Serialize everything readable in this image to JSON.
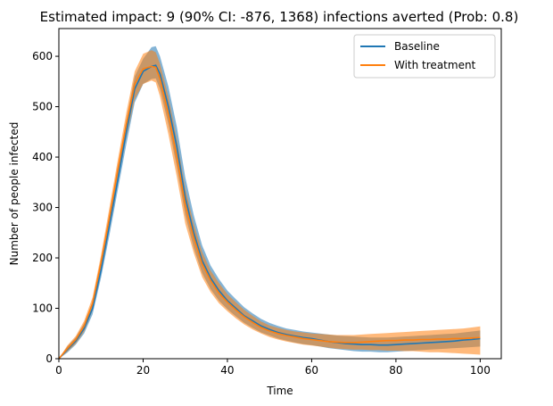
{
  "chart_data": {
    "type": "line",
    "title": "Estimated impact: 9 (90% CI: -876, 1368) infections averted (Prob: 0.8)",
    "xlabel": "Time",
    "ylabel": "Number of people infected",
    "xlim": [
      0,
      105
    ],
    "ylim": [
      0,
      655
    ],
    "xticks": [
      0,
      20,
      40,
      60,
      80,
      100
    ],
    "yticks": [
      0,
      100,
      200,
      300,
      400,
      500,
      600
    ],
    "xtick_labels": [
      "0",
      "20",
      "40",
      "60",
      "80",
      "100"
    ],
    "ytick_labels": [
      "0",
      "100",
      "200",
      "300",
      "400",
      "500",
      "600"
    ],
    "grid": false,
    "legend_position": "top-right",
    "x": [
      0,
      2,
      4,
      6,
      8,
      10,
      12,
      14,
      16,
      18,
      20,
      22,
      23,
      24,
      26,
      28,
      30,
      32,
      34,
      36,
      38,
      40,
      42,
      44,
      46,
      48,
      50,
      52,
      54,
      56,
      58,
      60,
      62,
      64,
      66,
      68,
      70,
      72,
      74,
      76,
      78,
      80,
      82,
      84,
      86,
      88,
      90,
      92,
      94,
      96,
      98,
      100
    ],
    "series": [
      {
        "name": "Baseline",
        "color": "#1f77b4",
        "band_color": "#1f77b4",
        "values": [
          0,
          18,
          35,
          60,
          100,
          175,
          265,
          355,
          450,
          535,
          570,
          580,
          582,
          565,
          500,
          420,
          320,
          250,
          195,
          160,
          135,
          115,
          100,
          85,
          75,
          65,
          58,
          52,
          48,
          45,
          42,
          40,
          37,
          34,
          32,
          30,
          29,
          28,
          28,
          27,
          27,
          28,
          29,
          30,
          31,
          32,
          33,
          34,
          35,
          37,
          38,
          40
        ],
        "lower": [
          0,
          12,
          28,
          50,
          88,
          160,
          245,
          335,
          425,
          508,
          545,
          555,
          556,
          535,
          465,
          380,
          285,
          220,
          170,
          138,
          115,
          98,
          84,
          71,
          61,
          52,
          46,
          40,
          36,
          32,
          29,
          27,
          24,
          21,
          19,
          17,
          15,
          14,
          14,
          13,
          13,
          14,
          15,
          16,
          17,
          18,
          19,
          20,
          21,
          22,
          23,
          24
        ],
        "upper": [
          0,
          24,
          42,
          70,
          112,
          190,
          285,
          375,
          472,
          560,
          595,
          618,
          620,
          600,
          540,
          460,
          360,
          285,
          225,
          185,
          158,
          135,
          118,
          102,
          90,
          79,
          71,
          65,
          60,
          57,
          54,
          52,
          50,
          48,
          46,
          45,
          44,
          43,
          42,
          42,
          42,
          43,
          44,
          45,
          46,
          47,
          48,
          49,
          50,
          52,
          54,
          56
        ]
      },
      {
        "name": "With treatment",
        "color": "#ff7f0e",
        "band_color": "#ff7f0e",
        "values": [
          0,
          20,
          38,
          65,
          110,
          190,
          280,
          375,
          465,
          545,
          575,
          580,
          578,
          555,
          485,
          400,
          305,
          240,
          188,
          155,
          130,
          112,
          97,
          83,
          72,
          62,
          55,
          50,
          46,
          43,
          40,
          38,
          36,
          34,
          33,
          32,
          32,
          33,
          34,
          35,
          36,
          36,
          37,
          37,
          38,
          38,
          39,
          39,
          40,
          40,
          41,
          42
        ],
        "lower": [
          0,
          14,
          30,
          54,
          96,
          172,
          258,
          352,
          440,
          515,
          545,
          552,
          548,
          520,
          445,
          360,
          268,
          210,
          162,
          132,
          110,
          94,
          80,
          68,
          58,
          50,
          43,
          38,
          34,
          31,
          28,
          26,
          24,
          22,
          20,
          19,
          18,
          18,
          17,
          17,
          16,
          16,
          15,
          15,
          14,
          13,
          13,
          12,
          11,
          10,
          9,
          8
        ],
        "upper": [
          0,
          26,
          45,
          75,
          122,
          205,
          300,
          395,
          488,
          570,
          605,
          612,
          608,
          585,
          520,
          435,
          338,
          268,
          212,
          175,
          150,
          128,
          112,
          97,
          85,
          74,
          66,
          61,
          57,
          54,
          52,
          50,
          49,
          48,
          47,
          47,
          47,
          48,
          49,
          50,
          51,
          52,
          53,
          54,
          55,
          56,
          57,
          58,
          59,
          60,
          62,
          64
        ]
      }
    ]
  }
}
